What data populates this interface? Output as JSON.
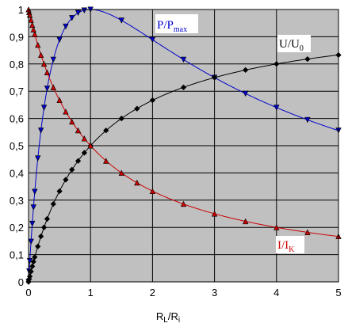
{
  "chart_data": {
    "type": "line",
    "title": "",
    "xlabel": "R_L/R_i",
    "ylabel": "",
    "xlim": [
      0,
      5
    ],
    "ylim": [
      0,
      1
    ],
    "x_ticks": [
      0,
      1,
      2,
      3,
      4,
      5
    ],
    "y_ticks": [
      0,
      0.1,
      0.2,
      0.3,
      0.4,
      0.5,
      0.6,
      0.7,
      0.8,
      0.9,
      1
    ],
    "x_tick_labels": [
      "0",
      "1",
      "2",
      "3",
      "4",
      "5"
    ],
    "y_tick_labels": [
      "0",
      "0,1",
      "0,2",
      "0,3",
      "0,4",
      "0,5",
      "0,6",
      "0,7",
      "0,8",
      "0,9",
      "1"
    ],
    "grid": true,
    "plot_background": "#c0c0c0",
    "series": [
      {
        "name": "P/P_max",
        "color": "#0000cc",
        "marker": "triangle-down",
        "formula": "4x/(1+x)^2",
        "x": [
          0,
          0.01,
          0.02,
          0.04,
          0.06,
          0.08,
          0.1,
          0.15,
          0.2,
          0.25,
          0.3,
          0.4,
          0.5,
          0.6,
          0.7,
          0.8,
          0.9,
          1,
          1.5,
          2,
          2.5,
          3,
          3.5,
          4,
          4.5,
          5
        ],
        "y": [
          0,
          0.039,
          0.077,
          0.148,
          0.214,
          0.274,
          0.331,
          0.454,
          0.556,
          0.64,
          0.71,
          0.816,
          0.889,
          0.938,
          0.969,
          0.988,
          0.997,
          1,
          0.96,
          0.889,
          0.816,
          0.75,
          0.691,
          0.64,
          0.595,
          0.556
        ]
      },
      {
        "name": "U/U_0",
        "color": "#000000",
        "marker": "diamond",
        "formula": "x/(1+x)",
        "x": [
          0,
          0.01,
          0.02,
          0.04,
          0.06,
          0.08,
          0.1,
          0.15,
          0.2,
          0.25,
          0.3,
          0.4,
          0.5,
          0.6,
          0.7,
          0.8,
          0.9,
          1,
          1.25,
          1.5,
          1.75,
          2,
          2.5,
          3,
          3.5,
          4,
          4.5,
          5
        ],
        "y": [
          0,
          0.01,
          0.02,
          0.038,
          0.057,
          0.074,
          0.091,
          0.13,
          0.167,
          0.2,
          0.231,
          0.286,
          0.333,
          0.375,
          0.412,
          0.444,
          0.474,
          0.5,
          0.556,
          0.6,
          0.636,
          0.667,
          0.714,
          0.75,
          0.778,
          0.8,
          0.818,
          0.833
        ]
      },
      {
        "name": "I/I_K",
        "color": "#cc0000",
        "marker": "triangle-up",
        "formula": "1/(1+x)",
        "x": [
          0,
          0.01,
          0.02,
          0.04,
          0.06,
          0.08,
          0.1,
          0.15,
          0.2,
          0.25,
          0.3,
          0.4,
          0.5,
          0.6,
          0.7,
          0.8,
          0.9,
          1,
          1.25,
          1.5,
          1.75,
          2,
          2.5,
          3,
          3.5,
          4,
          4.5,
          5
        ],
        "y": [
          1,
          0.99,
          0.98,
          0.962,
          0.943,
          0.926,
          0.909,
          0.87,
          0.833,
          0.8,
          0.769,
          0.714,
          0.667,
          0.625,
          0.588,
          0.556,
          0.526,
          0.5,
          0.444,
          0.4,
          0.364,
          0.333,
          0.286,
          0.25,
          0.222,
          0.2,
          0.182,
          0.167
        ]
      }
    ],
    "annotations": {
      "p_label": {
        "main": "P/P",
        "sub": "max",
        "color": "#0000cc"
      },
      "u_label": {
        "main": "U/U",
        "sub": "0",
        "color": "#000000"
      },
      "i_label": {
        "main": "I/I",
        "sub": "K",
        "color": "#cc0000"
      },
      "x_label": {
        "main": "R",
        "sub1": "L",
        "mid": "/R",
        "sub2": "i"
      }
    }
  }
}
